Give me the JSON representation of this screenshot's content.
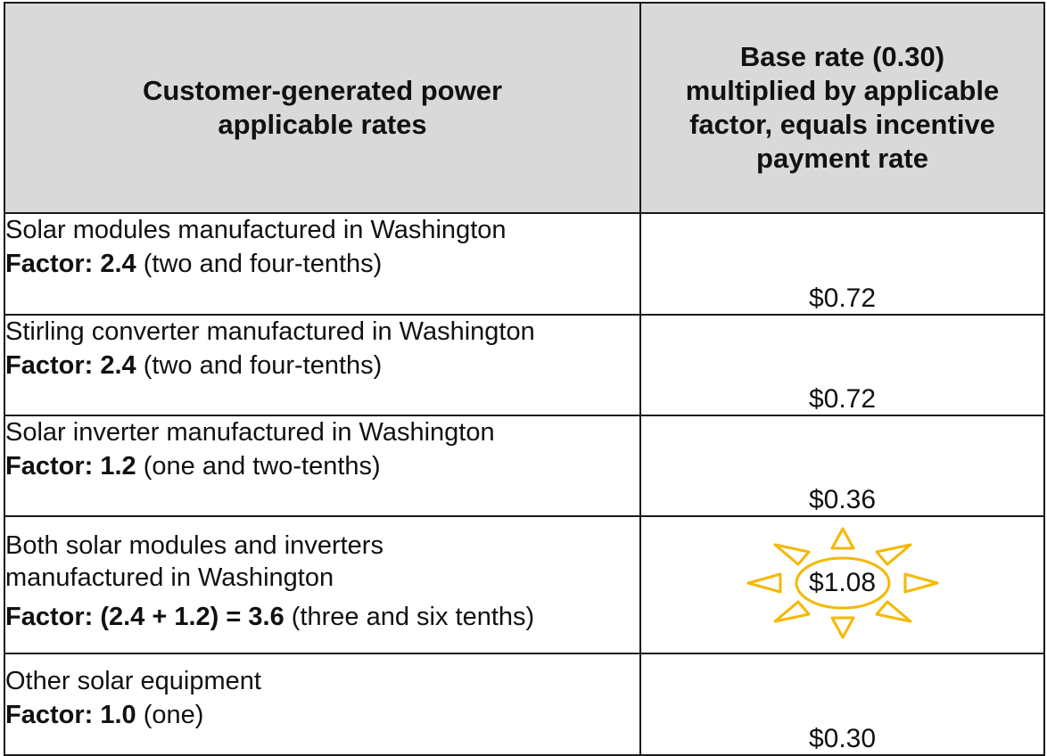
{
  "header": {
    "left_line_1": "Customer-generated power",
    "left_line_2": "applicable rates",
    "right_line_1": "Base rate (0.30)",
    "right_line_2": "multiplied by applicable",
    "right_line_3": "factor, equals incentive",
    "right_line_4": "payment rate"
  },
  "rows": [
    {
      "title_lines": [
        "Solar modules manufactured in Washington"
      ],
      "factor_label": "Factor: 2.4",
      "factor_note": " (two and four-tenths)",
      "rate": "$0.72"
    },
    {
      "title_lines": [
        "Stirling converter manufactured in Washington"
      ],
      "factor_label": "Factor: 2.4",
      "factor_note": " (two and four-tenths)",
      "rate": "$0.72"
    },
    {
      "title_lines": [
        "Solar inverter manufactured in Washington"
      ],
      "factor_label": "Factor: 1.2",
      "factor_note": " (one and two-tenths)",
      "rate": "$0.36"
    },
    {
      "title_lines": [
        "Both solar modules and inverters",
        "manufactured in Washington"
      ],
      "factor_label": "Factor: (2.4 + 1.2) = 3.6",
      "factor_note": " (three and six tenths)",
      "rate": "$1.08"
    },
    {
      "title_lines": [
        "Other solar equipment"
      ],
      "factor_label": "Factor: 1.0",
      "factor_note": " (one)",
      "rate": "$0.30"
    }
  ],
  "highlight": {
    "icon": "sun-icon",
    "color": "#f5b800"
  }
}
